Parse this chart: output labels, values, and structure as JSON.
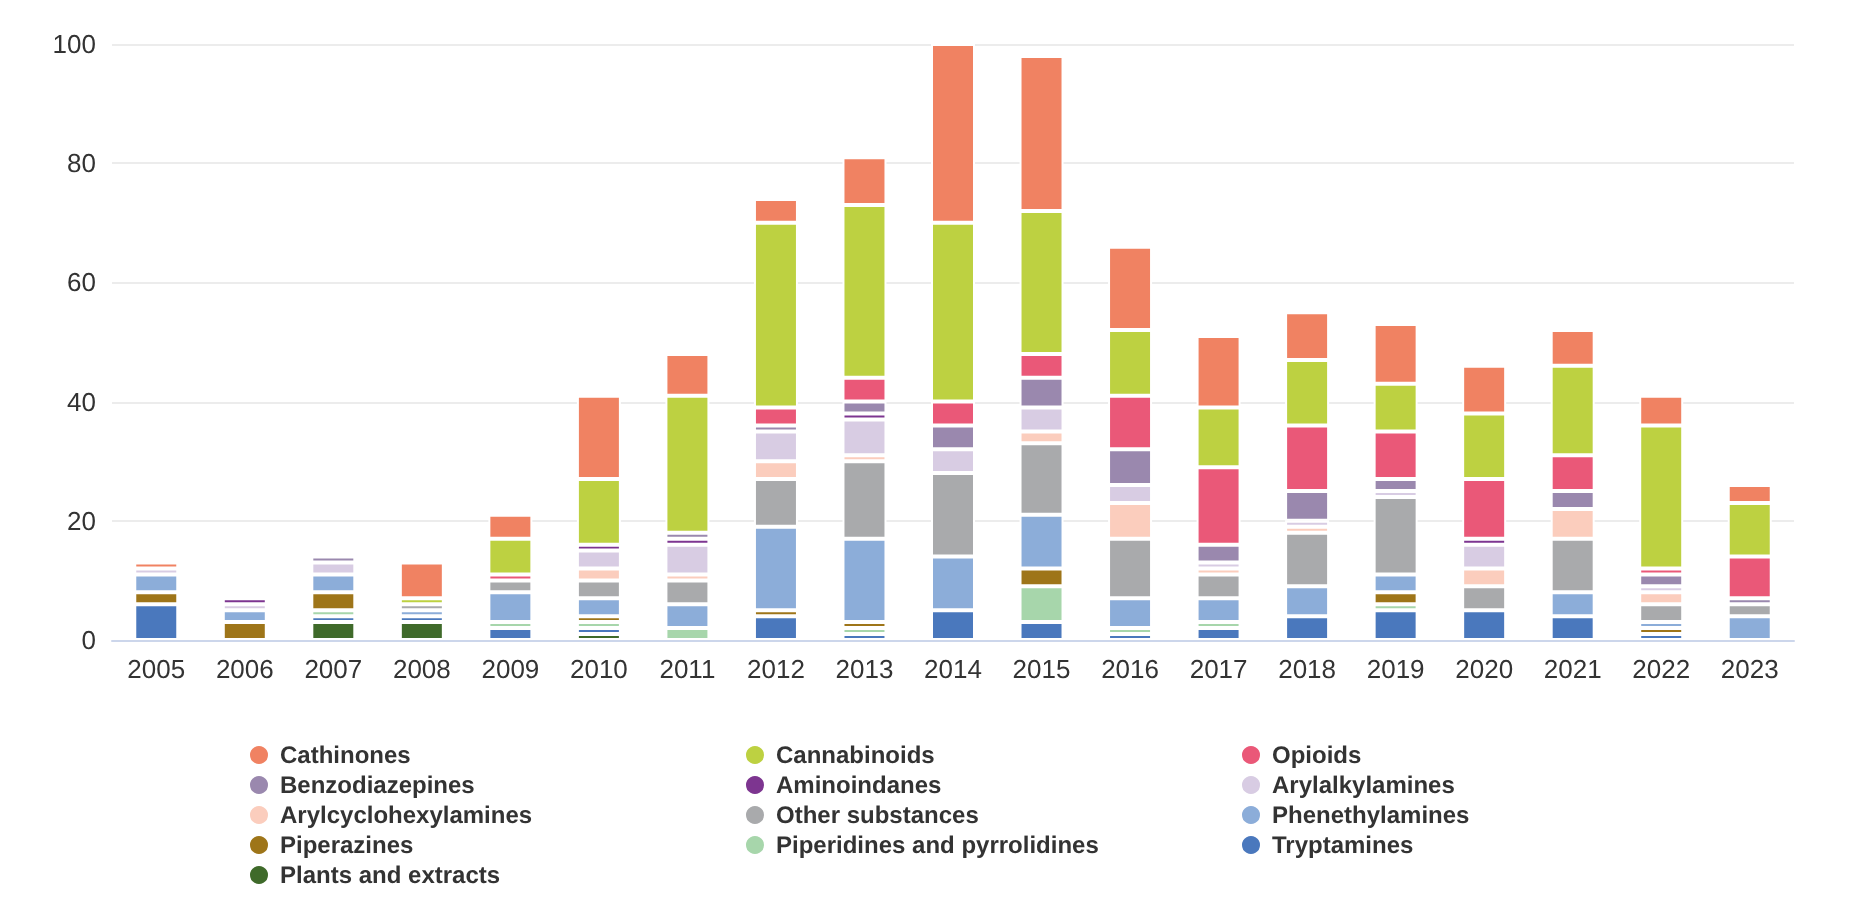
{
  "chart_data": {
    "type": "bar",
    "stacked": true,
    "categories": [
      "2005",
      "2006",
      "2007",
      "2008",
      "2009",
      "2010",
      "2011",
      "2012",
      "2013",
      "2014",
      "2015",
      "2016",
      "2017",
      "2018",
      "2019",
      "2020",
      "2021",
      "2022",
      "2023"
    ],
    "ylim": [
      0,
      100
    ],
    "yticks": [
      0,
      20,
      40,
      60,
      80,
      100
    ],
    "grid": "y",
    "legend": "bottom",
    "series": [
      {
        "name": "Plants and extracts",
        "color": "#3f6a2a",
        "values": [
          null,
          null,
          3,
          3,
          null,
          1,
          null,
          null,
          null,
          null,
          null,
          null,
          null,
          null,
          null,
          null,
          null,
          null,
          null
        ]
      },
      {
        "name": "Tryptamines",
        "color": "#4a78bd",
        "values": [
          6,
          null,
          1,
          1,
          2,
          1,
          null,
          4,
          1,
          5,
          3,
          1,
          2,
          4,
          5,
          5,
          4,
          1,
          null
        ]
      },
      {
        "name": "Piperidines and pyrrolidines",
        "color": "#a7d6ab",
        "values": [
          null,
          null,
          1,
          null,
          1,
          1,
          2,
          null,
          1,
          null,
          6,
          1,
          1,
          null,
          1,
          null,
          null,
          null,
          null
        ]
      },
      {
        "name": "Piperazines",
        "color": "#9e7519",
        "values": [
          2,
          3,
          3,
          null,
          null,
          1,
          null,
          1,
          1,
          null,
          3,
          null,
          null,
          null,
          2,
          null,
          null,
          1,
          null
        ]
      },
      {
        "name": "Phenethylamines",
        "color": "#8cadd9",
        "values": [
          3,
          2,
          3,
          1,
          5,
          3,
          4,
          14,
          14,
          9,
          9,
          5,
          4,
          5,
          3,
          null,
          4,
          1,
          4
        ]
      },
      {
        "name": "Other substances",
        "color": "#a9aaac",
        "values": [
          null,
          null,
          null,
          1,
          2,
          3,
          4,
          8,
          13,
          14,
          12,
          10,
          4,
          9,
          13,
          4,
          9,
          3,
          2
        ]
      },
      {
        "name": "Arylcyclohexylamines",
        "color": "#fbcdbd",
        "values": [
          null,
          null,
          null,
          null,
          null,
          2,
          1,
          3,
          1,
          null,
          2,
          6,
          1,
          1,
          null,
          3,
          5,
          2,
          null
        ]
      },
      {
        "name": "Arylalkylamines",
        "color": "#d8cce3",
        "values": [
          1,
          1,
          2,
          null,
          null,
          3,
          5,
          5,
          6,
          4,
          4,
          3,
          1,
          1,
          1,
          4,
          null,
          1,
          null
        ]
      },
      {
        "name": "Aminoindanes",
        "color": "#7d3590",
        "values": [
          null,
          1,
          null,
          null,
          null,
          1,
          1,
          null,
          1,
          null,
          null,
          null,
          null,
          null,
          null,
          1,
          null,
          null,
          null
        ]
      },
      {
        "name": "Benzodiazepines",
        "color": "#9a88ae",
        "values": [
          null,
          null,
          1,
          null,
          null,
          null,
          1,
          1,
          2,
          4,
          5,
          6,
          3,
          5,
          2,
          null,
          3,
          2,
          1
        ]
      },
      {
        "name": "Opioids",
        "color": "#ea5878",
        "values": [
          null,
          null,
          null,
          null,
          1,
          null,
          null,
          3,
          4,
          4,
          4,
          9,
          13,
          11,
          8,
          10,
          6,
          1,
          7
        ]
      },
      {
        "name": "Cannabinoids",
        "color": "#bdd141",
        "values": [
          null,
          null,
          null,
          1,
          6,
          11,
          23,
          31,
          29,
          30,
          24,
          11,
          10,
          11,
          8,
          11,
          15,
          24,
          9
        ]
      },
      {
        "name": "Cathinones",
        "color": "#f08262",
        "values": [
          1,
          null,
          null,
          6,
          4,
          14,
          7,
          4,
          8,
          30,
          26,
          14,
          12,
          8,
          10,
          8,
          6,
          5,
          3
        ]
      }
    ]
  }
}
